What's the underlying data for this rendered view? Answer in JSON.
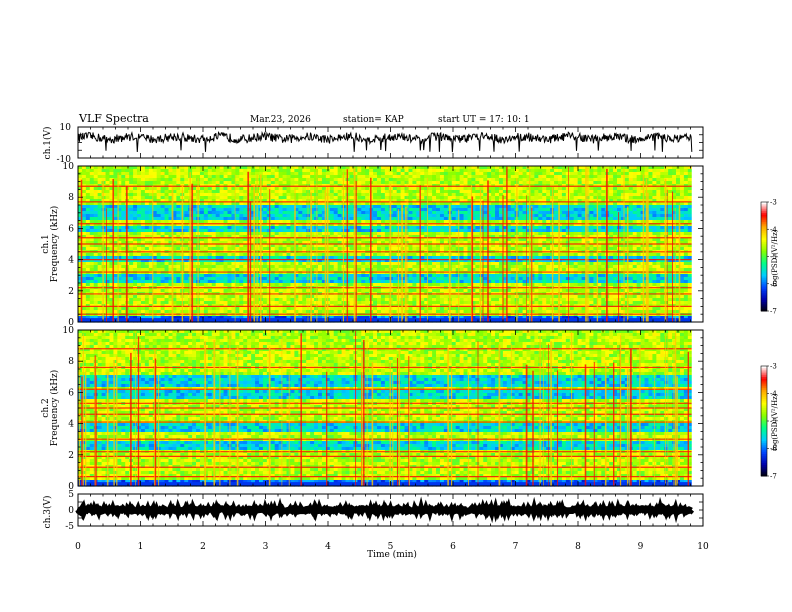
{
  "header": {
    "title": "VLF Spectra",
    "date": "Mar.23, 2026",
    "station": "station= KAP",
    "start_ut": "start  UT  =   17: 10: 1"
  },
  "chart_data": [
    {
      "id": "ch1-waveform",
      "type": "line",
      "ylabel": "ch.1(V)",
      "ylim": [
        -10,
        10
      ],
      "ytick_labels": [
        "10",
        "-10"
      ],
      "xlim": [
        0,
        10
      ],
      "data_extent_max": 9.82,
      "mean_value": 3,
      "amplitude": 2.8,
      "color": "#000000"
    },
    {
      "id": "ch1-spectrogram",
      "type": "heatmap",
      "ylabel": "Frequency  (kHz)",
      "channel_label": "ch.1",
      "xlim": [
        0,
        10
      ],
      "ylim": [
        0,
        10
      ],
      "ytick_labels": [
        "0",
        "2",
        "4",
        "6",
        "8",
        "10"
      ],
      "data_extent_max": 9.82,
      "quiet_bands_khz": [
        [
          6.6,
          7.5
        ],
        [
          5.7,
          6.2
        ],
        [
          3.8,
          4.2
        ],
        [
          2.5,
          3.0
        ]
      ],
      "interference_lines_khz": [
        0.5,
        1.0,
        1.8,
        2.2,
        3.2,
        4.0,
        4.5,
        5.0,
        5.4,
        6.3,
        7.7,
        8.7
      ],
      "colorbar": {
        "label": "log(PSD)(V²/Hz)",
        "ticks": [
          "-3",
          "-4",
          "-5",
          "-6",
          "-7"
        ],
        "range": [
          -7,
          -3
        ]
      }
    },
    {
      "id": "ch2-spectrogram",
      "type": "heatmap",
      "ylabel": "Frequency  (kHz)",
      "channel_label": "ch.2",
      "xlim": [
        0,
        10
      ],
      "ylim": [
        0,
        10
      ],
      "ytick_labels": [
        "0",
        "2",
        "4",
        "6",
        "8",
        "10"
      ],
      "data_extent_max": 9.82,
      "quiet_bands_khz": [
        [
          6.3,
          7.2
        ],
        [
          5.5,
          6.1
        ],
        [
          3.4,
          4.0
        ],
        [
          2.3,
          2.8
        ]
      ],
      "interference_lines_khz": [
        0.6,
        1.2,
        1.9,
        2.2,
        3.0,
        4.1,
        4.6,
        5.0,
        5.3,
        6.2,
        7.6,
        8.8
      ],
      "colorbar": {
        "label": "log(PSD)(V²/Hz)",
        "ticks": [
          "-3",
          "-4",
          "-5",
          "-6",
          "-7"
        ],
        "range": [
          -7,
          -3
        ]
      }
    },
    {
      "id": "ch3-waveform",
      "type": "line",
      "ylabel": "ch.3(V)",
      "ylim": [
        -5,
        5
      ],
      "ytick_labels": [
        "5",
        "0",
        "-5"
      ],
      "xlim": [
        0,
        10
      ],
      "data_extent_max": 9.82,
      "mean_value": 0,
      "amplitude": 0.5,
      "color": "#000000"
    }
  ],
  "x_axis": {
    "label": "Time  (min)",
    "tick_labels": [
      "0",
      "1",
      "2",
      "3",
      "4",
      "5",
      "6",
      "7",
      "8",
      "9",
      "10"
    ]
  },
  "colors": {
    "colormap": [
      "#000000",
      "#0000aa",
      "#0044ff",
      "#00ccff",
      "#00ff88",
      "#88ff00",
      "#ffff00",
      "#ffaa00",
      "#ff0000",
      "#ffffff"
    ]
  }
}
